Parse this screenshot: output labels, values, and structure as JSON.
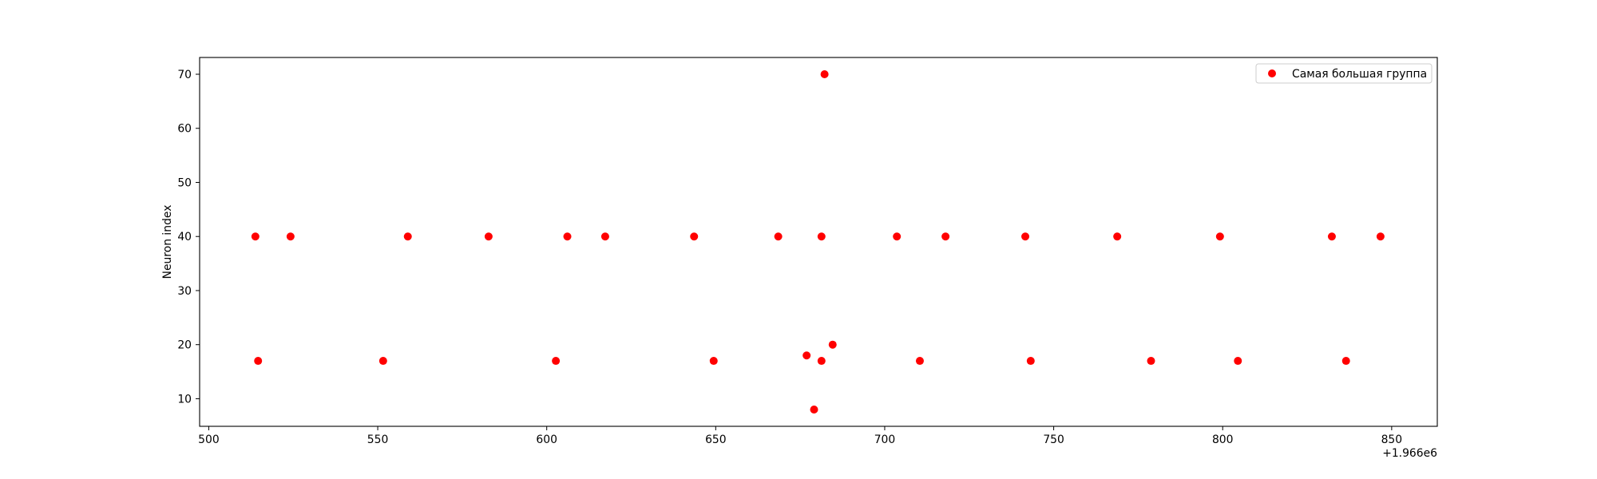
{
  "chart_data": {
    "type": "scatter",
    "title": "",
    "xlabel": "",
    "ylabel": "Neuron index",
    "x_offset_label": "+1.966e6",
    "xlim": [
      1966497.3,
      1966863.5
    ],
    "ylim": [
      4.9,
      73.1
    ],
    "x_ticks": [
      1966500,
      1966550,
      1966600,
      1966650,
      1966700,
      1966750,
      1966800,
      1966850
    ],
    "x_tick_labels": [
      "500",
      "550",
      "600",
      "650",
      "700",
      "750",
      "800",
      "850"
    ],
    "y_ticks": [
      10,
      20,
      30,
      40,
      50,
      60,
      70
    ],
    "y_tick_labels": [
      "10",
      "20",
      "30",
      "40",
      "50",
      "60",
      "70"
    ],
    "grid": false,
    "legend_position": "upper right",
    "marker_color": "#ff0000",
    "series": [
      {
        "name": "Самая большая группа",
        "color": "#ff0000",
        "points": [
          {
            "x": 1966513.8,
            "y": 40
          },
          {
            "x": 1966524.2,
            "y": 40
          },
          {
            "x": 1966558.9,
            "y": 40
          },
          {
            "x": 1966582.8,
            "y": 40
          },
          {
            "x": 1966606.1,
            "y": 40
          },
          {
            "x": 1966617.3,
            "y": 40
          },
          {
            "x": 1966643.6,
            "y": 40
          },
          {
            "x": 1966668.5,
            "y": 40
          },
          {
            "x": 1966681.3,
            "y": 40
          },
          {
            "x": 1966703.6,
            "y": 40
          },
          {
            "x": 1966718.0,
            "y": 40
          },
          {
            "x": 1966741.6,
            "y": 40
          },
          {
            "x": 1966768.8,
            "y": 40
          },
          {
            "x": 1966799.2,
            "y": 40
          },
          {
            "x": 1966832.3,
            "y": 40
          },
          {
            "x": 1966846.7,
            "y": 40
          },
          {
            "x": 1966514.6,
            "y": 17
          },
          {
            "x": 1966551.6,
            "y": 17
          },
          {
            "x": 1966602.7,
            "y": 17
          },
          {
            "x": 1966649.4,
            "y": 17
          },
          {
            "x": 1966681.3,
            "y": 17
          },
          {
            "x": 1966710.4,
            "y": 17
          },
          {
            "x": 1966743.2,
            "y": 17
          },
          {
            "x": 1966778.8,
            "y": 17
          },
          {
            "x": 1966804.5,
            "y": 17
          },
          {
            "x": 1966836.5,
            "y": 17
          },
          {
            "x": 1966676.9,
            "y": 18
          },
          {
            "x": 1966684.6,
            "y": 20
          },
          {
            "x": 1966679.1,
            "y": 8
          },
          {
            "x": 1966682.2,
            "y": 70
          }
        ]
      }
    ]
  }
}
